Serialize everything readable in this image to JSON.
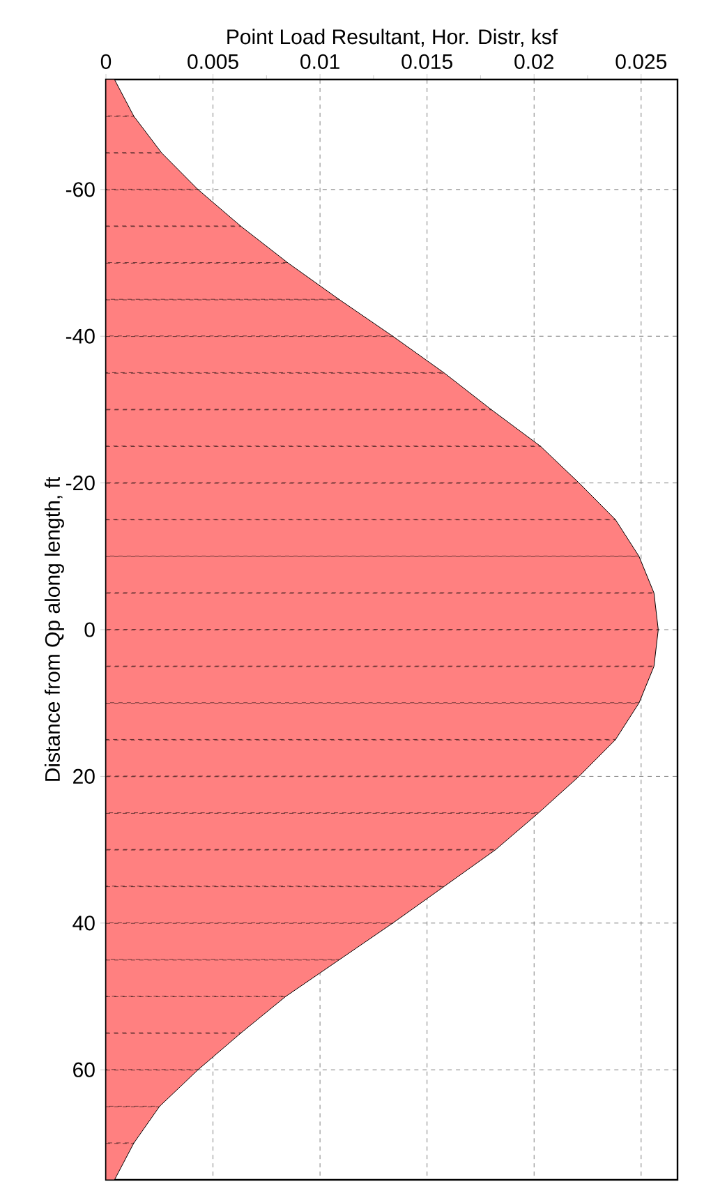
{
  "chart_data": {
    "type": "area",
    "orientation": "horizontal",
    "xlabel": "Point Load Resultant, Hor. Distr, ksf",
    "ylabel": "Distance from Qp along length, ft",
    "xlim": [
      0,
      0.0267
    ],
    "xticks": [
      0,
      0.005,
      0.01,
      0.015,
      0.02,
      0.025
    ],
    "ylim": [
      75,
      -75
    ],
    "yticks": [
      -60,
      -40,
      -20,
      0,
      20,
      40,
      60
    ],
    "grid": true,
    "series": [
      {
        "color": "#ff8080",
        "x": [
          -75,
          -70,
          -65,
          -60,
          -55,
          -50,
          -45,
          -40,
          -35,
          -30,
          -25,
          -20,
          -15,
          -10,
          -5,
          0,
          5,
          10,
          15,
          20,
          25,
          30,
          35,
          40,
          45,
          50,
          55,
          60,
          65,
          70,
          75
        ],
        "values": [
          0.0004,
          0.0013,
          0.0026,
          0.0043,
          0.0063,
          0.0085,
          0.0109,
          0.0134,
          0.0158,
          0.018,
          0.0203,
          0.0221,
          0.0238,
          0.0249,
          0.0256,
          0.0258,
          0.0256,
          0.0249,
          0.0238,
          0.0221,
          0.0202,
          0.0182,
          0.0158,
          0.0134,
          0.0109,
          0.0084,
          0.0063,
          0.0043,
          0.0025,
          0.0013,
          0.0004
        ]
      },
      {
        "type": "bar",
        "color": "#000000",
        "line_style": "dashed",
        "x": [
          -70,
          -65,
          -60,
          -55,
          -50,
          -45,
          -40,
          -35,
          -30,
          -25,
          -20,
          -15,
          -10,
          -5,
          0,
          5,
          10,
          15,
          20,
          25,
          30,
          35,
          40,
          45,
          50,
          55,
          60,
          65,
          70
        ],
        "values": [
          0.0013,
          0.0026,
          0.0043,
          0.0063,
          0.0085,
          0.0109,
          0.0134,
          0.0158,
          0.018,
          0.0203,
          0.0221,
          0.0238,
          0.0249,
          0.0256,
          0.0258,
          0.0256,
          0.0249,
          0.0238,
          0.0221,
          0.0202,
          0.0182,
          0.0158,
          0.0134,
          0.0109,
          0.0084,
          0.0063,
          0.0043,
          0.0025,
          0.0013
        ]
      }
    ]
  }
}
